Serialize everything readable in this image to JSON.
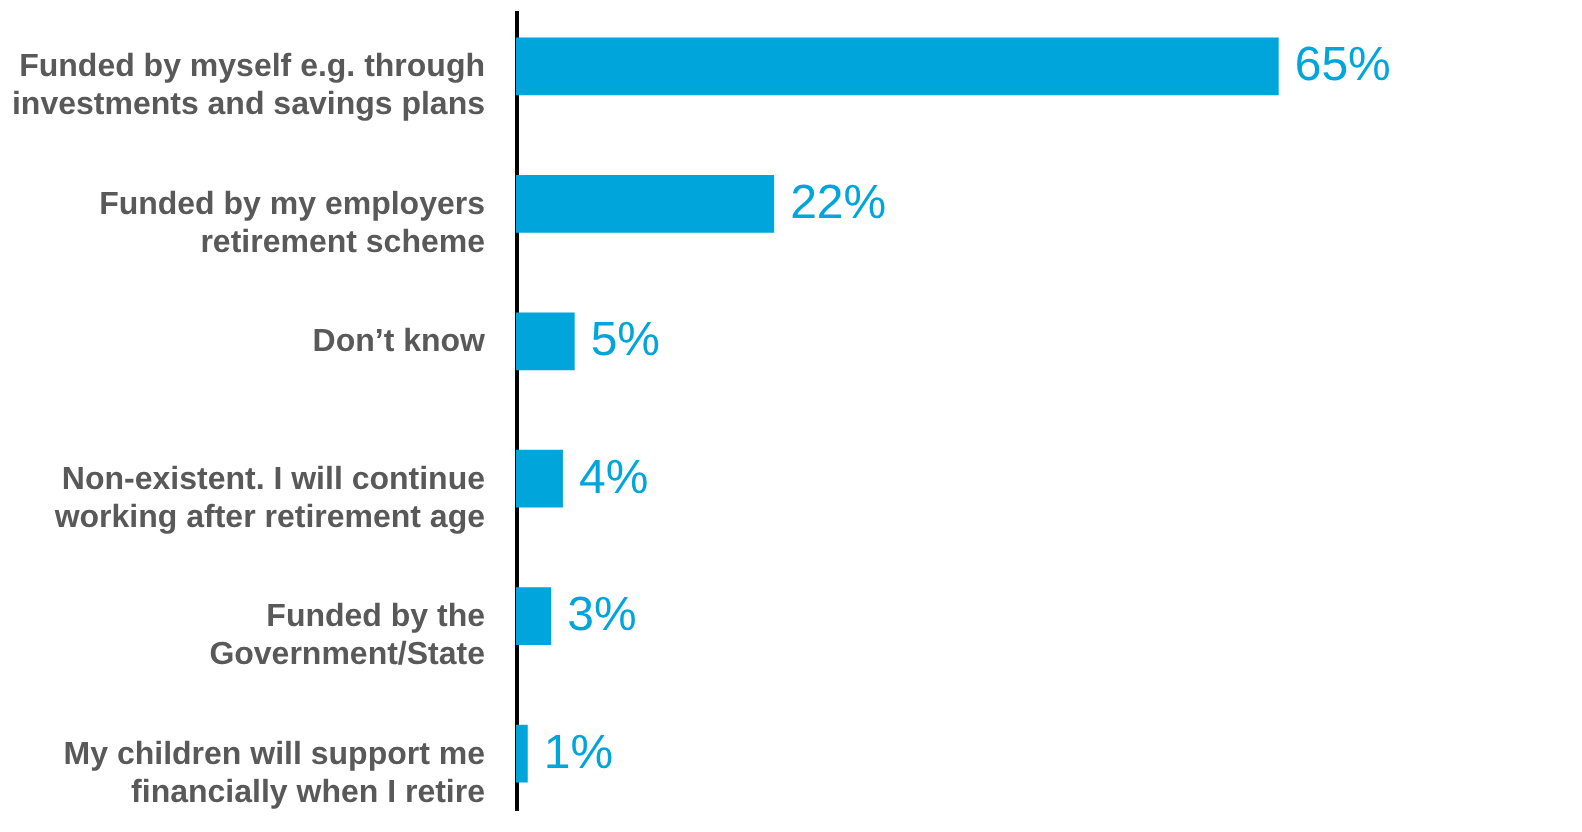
{
  "chart_data": {
    "type": "bar",
    "orientation": "horizontal",
    "categories": [
      "Funded by myself e.g. through investments and savings plans",
      "Funded by my employers retirement scheme",
      "Don’t know",
      "Non-existent. I will continue working after retirement age",
      "Funded by the Government/State",
      "My children will support me financially when I retire"
    ],
    "values": [
      65,
      22,
      5,
      4,
      3,
      1
    ],
    "value_labels": [
      "65%",
      "22%",
      "5%",
      "4%",
      "3%",
      "1%"
    ],
    "color": "#00a6db",
    "grid": false
  }
}
